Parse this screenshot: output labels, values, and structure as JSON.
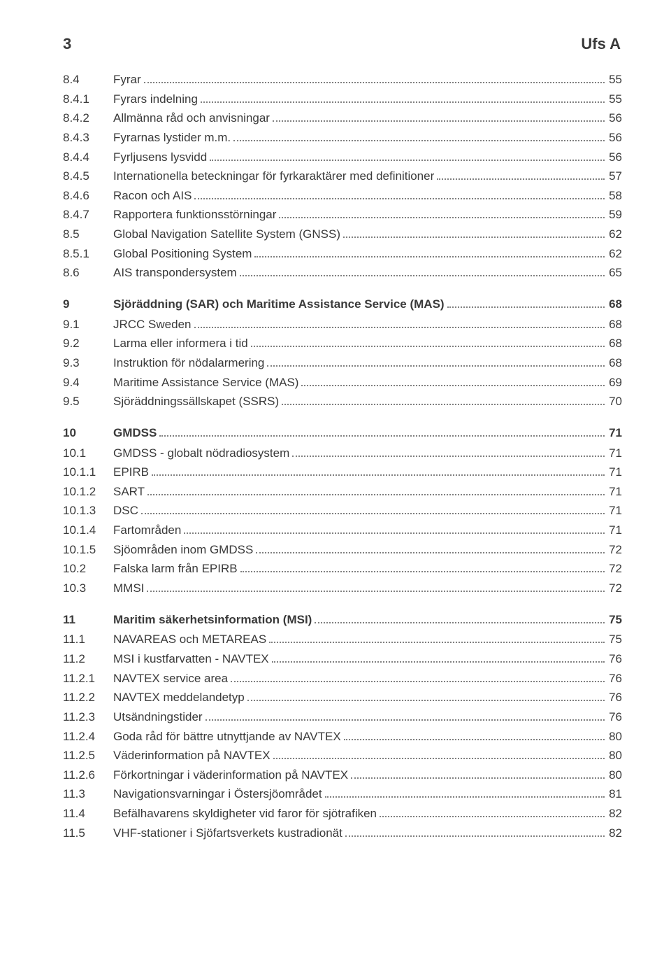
{
  "header": {
    "page_number": "3",
    "doc_label": "Ufs A"
  },
  "text_color": "#3a3a3a",
  "dot_color": "#808080",
  "background_color": "#ffffff",
  "font_family": "Arial, Helvetica, sans-serif",
  "base_font_size_pt": 12,
  "toc": [
    {
      "level": 2,
      "num": "8.4",
      "title": "Fyrar",
      "page": "55"
    },
    {
      "level": 3,
      "num": "8.4.1",
      "title": "Fyrars indelning",
      "page": "55"
    },
    {
      "level": 3,
      "num": "8.4.2",
      "title": "Allmänna råd och anvisningar",
      "page": "56"
    },
    {
      "level": 3,
      "num": "8.4.3",
      "title": "Fyrarnas lystider m.m.",
      "page": "56"
    },
    {
      "level": 3,
      "num": "8.4.4",
      "title": "Fyrljusens lysvidd",
      "page": "56"
    },
    {
      "level": 3,
      "num": "8.4.5",
      "title": "Internationella beteckningar för fyrkaraktärer med definitioner",
      "page": "57"
    },
    {
      "level": 3,
      "num": "8.4.6",
      "title": "Racon och AIS",
      "page": "58"
    },
    {
      "level": 3,
      "num": "8.4.7",
      "title": "Rapportera funktionsstörningar",
      "page": "59"
    },
    {
      "level": 2,
      "num": "8.5",
      "title": "Global Navigation Satellite System (GNSS)",
      "page": "62"
    },
    {
      "level": 3,
      "num": "8.5.1",
      "title": "Global Positioning System",
      "page": "62"
    },
    {
      "level": 2,
      "num": "8.6",
      "title": "AIS transpondersystem",
      "page": "65"
    },
    {
      "level": 1,
      "num": "9",
      "title": "Sjöräddning (SAR) och Maritime Assistance Service (MAS)",
      "page": "68"
    },
    {
      "level": 2,
      "num": "9.1",
      "title": "JRCC Sweden",
      "page": "68"
    },
    {
      "level": 2,
      "num": "9.2",
      "title": "Larma eller informera i tid",
      "page": "68"
    },
    {
      "level": 2,
      "num": "9.3",
      "title": "Instruktion för nödalarmering",
      "page": "68"
    },
    {
      "level": 2,
      "num": "9.4",
      "title": "Maritime Assistance Service (MAS)",
      "page": "69"
    },
    {
      "level": 2,
      "num": "9.5",
      "title": "Sjöräddningssällskapet (SSRS)",
      "page": "70"
    },
    {
      "level": 1,
      "num": "10",
      "title": "GMDSS",
      "page": "71"
    },
    {
      "level": 2,
      "num": "10.1",
      "title": "GMDSS - globalt nödradiosystem",
      "page": "71"
    },
    {
      "level": 3,
      "num": "10.1.1",
      "title": "EPIRB",
      "page": "71"
    },
    {
      "level": 3,
      "num": "10.1.2",
      "title": "SART",
      "page": "71"
    },
    {
      "level": 3,
      "num": "10.1.3",
      "title": "DSC",
      "page": "71"
    },
    {
      "level": 3,
      "num": "10.1.4",
      "title": "Fartområden",
      "page": "71"
    },
    {
      "level": 3,
      "num": "10.1.5",
      "title": "Sjöområden inom GMDSS",
      "page": "72"
    },
    {
      "level": 2,
      "num": "10.2",
      "title": "Falska larm från EPIRB",
      "page": "72"
    },
    {
      "level": 2,
      "num": "10.3",
      "title": "MMSI",
      "page": "72"
    },
    {
      "level": 1,
      "num": "11",
      "title": "Maritim säkerhetsinformation (MSI)",
      "page": "75"
    },
    {
      "level": 2,
      "num": "11.1",
      "title": "NAVAREAS och METAREAS",
      "page": "75"
    },
    {
      "level": 2,
      "num": "11.2",
      "title": "MSI i kustfarvatten - NAVTEX",
      "page": "76"
    },
    {
      "level": 3,
      "num": "11.2.1",
      "title": "NAVTEX service area",
      "page": "76"
    },
    {
      "level": 3,
      "num": "11.2.2",
      "title": "NAVTEX meddelandetyp",
      "page": "76"
    },
    {
      "level": 3,
      "num": "11.2.3",
      "title": "Utsändningstider",
      "page": "76"
    },
    {
      "level": 3,
      "num": "11.2.4",
      "title": "Goda råd för bättre utnyttjande av NAVTEX",
      "page": "80"
    },
    {
      "level": 3,
      "num": "11.2.5",
      "title": "Väderinformation på NAVTEX",
      "page": "80"
    },
    {
      "level": 3,
      "num": "11.2.6",
      "title": "Förkortningar i väderinformation på NAVTEX",
      "page": "80"
    },
    {
      "level": 2,
      "num": "11.3",
      "title": "Navigationsvarningar i Östersjöområdet",
      "page": "81"
    },
    {
      "level": 2,
      "num": "11.4",
      "title": "Befälhavarens skyldigheter vid faror för sjötrafiken",
      "page": "82"
    },
    {
      "level": 2,
      "num": "11.5",
      "title": "VHF-stationer i Sjöfartsverkets kustradionät",
      "page": "82"
    }
  ]
}
